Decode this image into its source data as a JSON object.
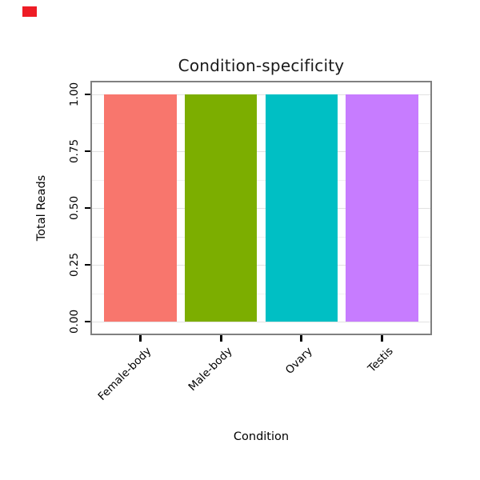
{
  "artifact_marker": {
    "color": "#ee1c25"
  },
  "chart_data": {
    "type": "bar",
    "title": "Condition-specificity",
    "xlabel": "Condition",
    "ylabel": "Total Reads",
    "categories": [
      "Female-body",
      "Male-body",
      "Ovary",
      "Testis"
    ],
    "values": [
      1.0,
      1.0,
      1.0,
      1.0
    ],
    "bar_colors": [
      "#F8766D",
      "#7CAE00",
      "#00BFC4",
      "#C77CFF"
    ],
    "yticks": [
      "0.00",
      "0.25",
      "0.50",
      "0.75",
      "1.00"
    ],
    "ylim": [
      0,
      1
    ],
    "grid": "horizontal major and minor, light gray on white",
    "legend": "none",
    "panel_border_color": "#808080"
  }
}
